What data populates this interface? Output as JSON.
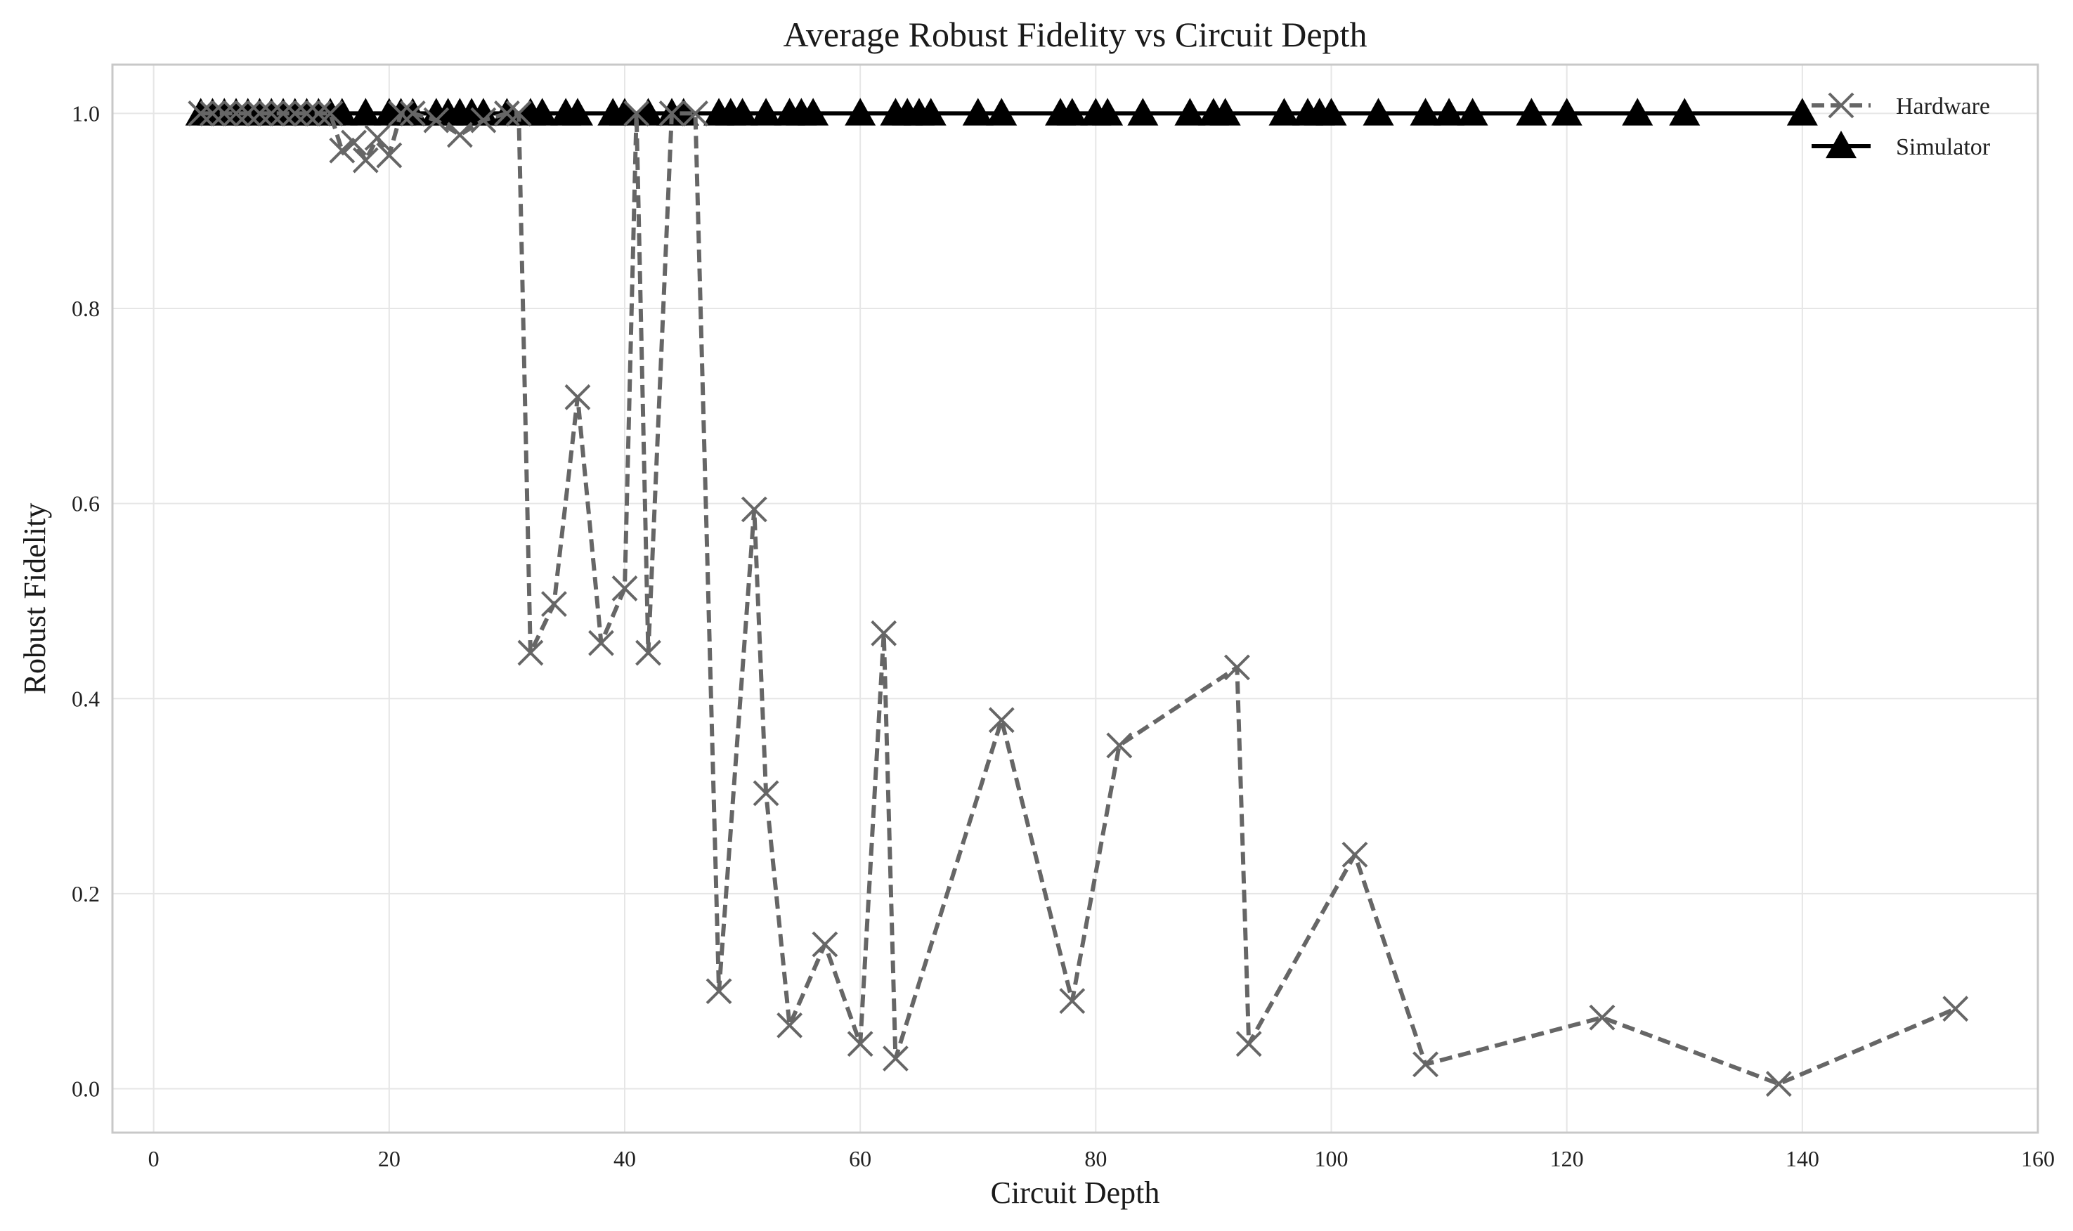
{
  "chart_data": {
    "type": "line",
    "title": "Average Robust Fidelity vs Circuit Depth",
    "xlabel": "Circuit Depth",
    "ylabel": "Robust Fidelity",
    "xlim": [
      -3.5,
      160
    ],
    "ylim": [
      -0.045,
      1.05
    ],
    "xticks": [
      0,
      20,
      40,
      60,
      80,
      100,
      120,
      140,
      160
    ],
    "yticks": [
      0.0,
      0.2,
      0.4,
      0.6,
      0.8,
      1.0
    ],
    "grid": true,
    "legend_position": "top-right",
    "series": [
      {
        "name": "Hardware",
        "marker": "x",
        "line_style": "dashed",
        "color": "#666666",
        "x": [
          4,
          5,
          6,
          7,
          8,
          9,
          10,
          11,
          12,
          13,
          14,
          15,
          16,
          17,
          18,
          19,
          20,
          21,
          22,
          24,
          26,
          28,
          30,
          31,
          32,
          34,
          36,
          38,
          40,
          41,
          42,
          44,
          46,
          48,
          51,
          52,
          54,
          57,
          60,
          62,
          63,
          72,
          78,
          82,
          92,
          93,
          102,
          108,
          123,
          138,
          153
        ],
        "y": [
          1.0,
          1.0,
          1.0,
          1.0,
          1.0,
          1.0,
          1.0,
          1.0,
          1.0,
          1.0,
          1.0,
          1.0,
          0.962,
          0.97,
          0.952,
          0.975,
          0.957,
          1.0,
          1.0,
          0.993,
          0.978,
          0.993,
          1.0,
          1.0,
          0.447,
          0.497,
          0.709,
          0.457,
          0.513,
          1.0,
          0.447,
          1.0,
          1.0,
          0.1,
          0.594,
          0.303,
          0.065,
          0.148,
          0.046,
          0.467,
          0.031,
          0.378,
          0.09,
          0.352,
          0.432,
          0.046,
          0.24,
          0.025,
          0.073,
          0.005,
          0.082
        ]
      },
      {
        "name": "Simulator",
        "marker": "triangle",
        "line_style": "solid",
        "color": "#000000",
        "x": [
          4,
          5,
          6,
          7,
          8,
          9,
          10,
          11,
          12,
          13,
          14,
          15,
          16,
          18,
          20,
          21,
          22,
          24,
          25,
          26,
          27,
          28,
          30,
          32,
          33,
          35,
          36,
          39,
          40,
          42,
          44,
          45,
          48,
          49,
          50,
          52,
          54,
          55,
          56,
          60,
          63,
          64,
          65,
          66,
          70,
          72,
          77,
          78,
          80,
          81,
          84,
          88,
          90,
          91,
          96,
          98,
          99,
          100,
          104,
          108,
          110,
          112,
          117,
          120,
          126,
          130,
          140
        ],
        "y": [
          1.0,
          1.0,
          1.0,
          1.0,
          1.0,
          1.0,
          1.0,
          1.0,
          1.0,
          1.0,
          1.0,
          1.0,
          1.0,
          1.0,
          1.0,
          1.0,
          1.0,
          1.0,
          1.0,
          1.0,
          1.0,
          1.0,
          1.0,
          1.0,
          1.0,
          1.0,
          1.0,
          1.0,
          1.0,
          1.0,
          1.0,
          1.0,
          1.0,
          1.0,
          1.0,
          1.0,
          1.0,
          1.0,
          1.0,
          1.0,
          1.0,
          1.0,
          1.0,
          1.0,
          1.0,
          1.0,
          1.0,
          1.0,
          1.0,
          1.0,
          1.0,
          1.0,
          1.0,
          1.0,
          1.0,
          1.0,
          1.0,
          1.0,
          1.0,
          1.0,
          1.0,
          1.0,
          1.0,
          1.0,
          1.0,
          1.0,
          1.0
        ]
      }
    ]
  }
}
